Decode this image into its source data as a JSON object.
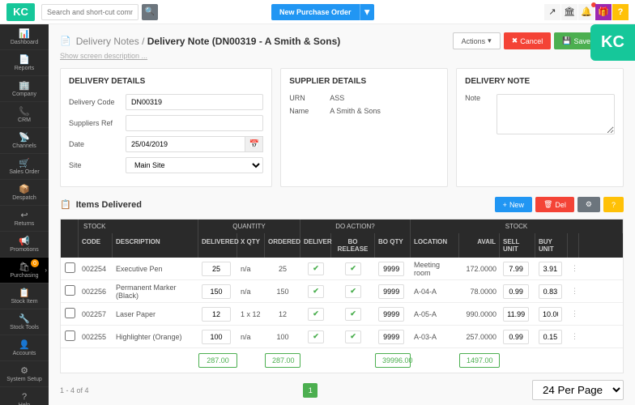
{
  "logo": "KC",
  "search": {
    "placeholder": "Search and short-cut commands"
  },
  "topbar": {
    "new_po": "New Purchase Order"
  },
  "sidebar": {
    "items": [
      {
        "icon": "📊",
        "label": "Dashboard"
      },
      {
        "icon": "📄",
        "label": "Reports"
      },
      {
        "icon": "🏢",
        "label": "Company"
      },
      {
        "icon": "📞",
        "label": "CRM"
      },
      {
        "icon": "📡",
        "label": "Channels"
      },
      {
        "icon": "🛒",
        "label": "Sales Order"
      },
      {
        "icon": "📦",
        "label": "Despatch"
      },
      {
        "icon": "↩",
        "label": "Returns"
      },
      {
        "icon": "📢",
        "label": "Promotions"
      },
      {
        "icon": "🛍",
        "label": "Purchasing"
      },
      {
        "icon": "📋",
        "label": "Stock Item"
      },
      {
        "icon": "🔧",
        "label": "Stock Tools"
      },
      {
        "icon": "👤",
        "label": "Accounts"
      },
      {
        "icon": "⚙",
        "label": "System Setup"
      },
      {
        "icon": "?",
        "label": "Help"
      }
    ]
  },
  "breadcrumb": {
    "parent": "Delivery Notes",
    "current": "Delivery Note (DN00319 - A Smith & Sons)"
  },
  "desc_link": "Show screen description ...",
  "actions": {
    "dropdown": "Actions",
    "cancel": "Cancel",
    "save": "Save Screen"
  },
  "panels": {
    "delivery_details": {
      "title": "DELIVERY DETAILS",
      "code_label": "Delivery Code",
      "code": "DN00319",
      "ref_label": "Suppliers Ref",
      "ref": "",
      "date_label": "Date",
      "date": "25/04/2019",
      "site_label": "Site",
      "site": "Main Site"
    },
    "supplier": {
      "title": "SUPPLIER DETAILS",
      "urn_label": "URN",
      "urn": "ASS",
      "name_label": "Name",
      "name": "A Smith & Sons"
    },
    "note": {
      "title": "DELIVERY NOTE",
      "label": "Note"
    }
  },
  "items": {
    "title": "Items Delivered",
    "btn_new": "New",
    "btn_del": "Del",
    "groups": {
      "stock1": "STOCK",
      "qty": "QUANTITY",
      "action": "DO ACTION?",
      "stock2": "STOCK"
    },
    "cols": {
      "code": "CODE",
      "desc": "DESCRIPTION",
      "del": "DELIVERED",
      "xqty": "X QTY",
      "ord": "ORDERED",
      "dlv": "DELIVER",
      "bor": "BO RELEASE",
      "boq": "BO QTY",
      "loc": "LOCATION",
      "avl": "AVAIL",
      "sell": "SELL UNIT",
      "buy": "BUY UNIT"
    },
    "rows": [
      {
        "code": "002254",
        "desc": "Executive Pen",
        "del": "25",
        "xqty": "n/a",
        "ord": "25",
        "boq": "9999",
        "loc": "Meeting room",
        "avl": "172.0000",
        "sell": "7.99",
        "buy": "3.91"
      },
      {
        "code": "002256",
        "desc": "Permanent Marker (Black)",
        "del": "150",
        "xqty": "n/a",
        "ord": "150",
        "boq": "9999",
        "loc": "A-04-A",
        "avl": "78.0000",
        "sell": "0.99",
        "buy": "0.83"
      },
      {
        "code": "002257",
        "desc": "Laser Paper",
        "del": "12",
        "xqty": "1 x 12",
        "ord": "12",
        "boq": "9999",
        "loc": "A-05-A",
        "avl": "990.0000",
        "sell": "11.99",
        "buy": "10.00"
      },
      {
        "code": "002255",
        "desc": "Highlighter (Orange)",
        "del": "100",
        "xqty": "n/a",
        "ord": "100",
        "boq": "9999",
        "loc": "A-03-A",
        "avl": "257.0000",
        "sell": "0.99",
        "buy": "0.15"
      }
    ],
    "totals": {
      "del": "287.00",
      "ord": "287.00",
      "boq": "39996.00",
      "avl": "1497.00"
    }
  },
  "footer": {
    "range": "1 - 4 of 4",
    "page": "1",
    "per_page": "24 Per Page"
  }
}
